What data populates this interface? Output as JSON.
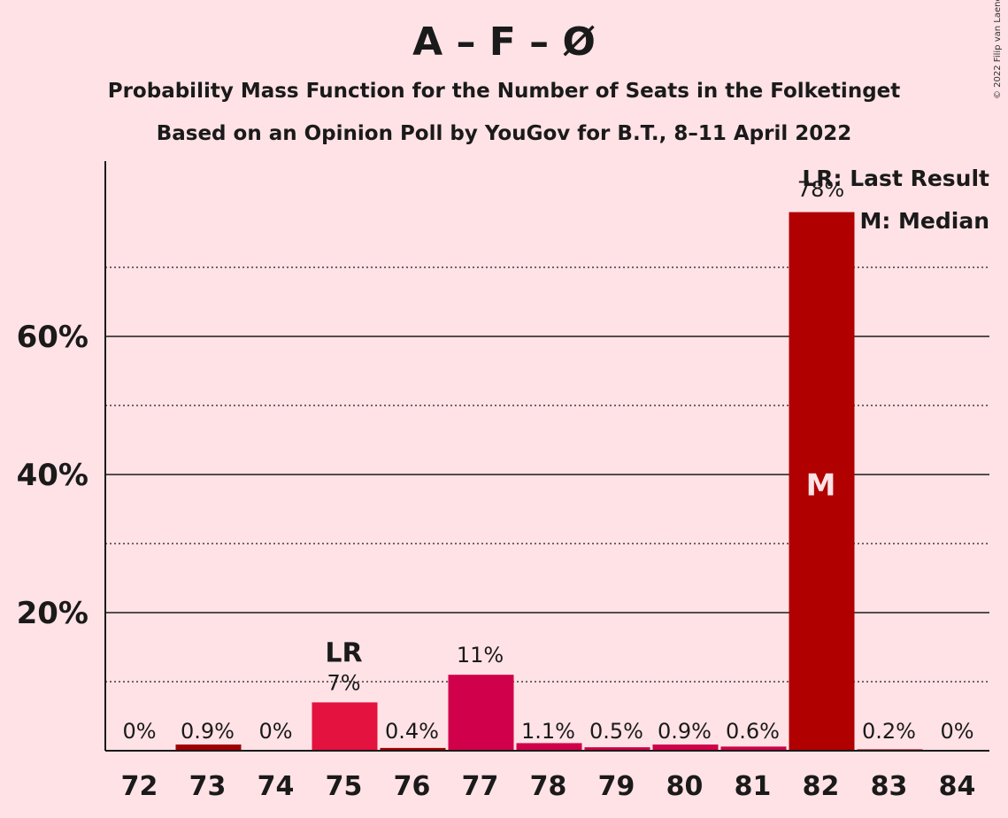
{
  "chart_data": {
    "type": "bar",
    "title": "A – F – Ø",
    "subtitle": "Probability Mass Function for the Number of Seats in the Folketinget",
    "subtitle2": "Based on an Opinion Poll by YouGov for B.T., 8–11 April 2022",
    "copyright": "© 2022 Filip van Laenen",
    "categories": [
      "72",
      "73",
      "74",
      "75",
      "76",
      "77",
      "78",
      "79",
      "80",
      "81",
      "82",
      "83",
      "84"
    ],
    "values": [
      0,
      0.9,
      0,
      7,
      0.4,
      11,
      1.1,
      0.5,
      0.9,
      0.6,
      78,
      0.2,
      0
    ],
    "value_labels": [
      "0%",
      "0.9%",
      "0%",
      "7%",
      "0.4%",
      "11%",
      "1.1%",
      "0.5%",
      "0.9%",
      "0.6%",
      "78%",
      "0.2%",
      "0%"
    ],
    "bar_colors": [
      "#A00000",
      "#A00000",
      "#A00000",
      "#E3123E",
      "#A00000",
      "#D0004A",
      "#D0004A",
      "#D0004A",
      "#D0004A",
      "#D0004A",
      "#B00000",
      "#A00000",
      "#A00000"
    ],
    "ylim": [
      0,
      85
    ],
    "y_ticks": [
      20,
      40,
      60
    ],
    "y_tick_labels": [
      "20%",
      "40%",
      "60%"
    ],
    "y_minor_gridlines": [
      10,
      30,
      50,
      70
    ],
    "last_result_category": "75",
    "last_result_marker": "LR",
    "median_category": "82",
    "median_marker": "M",
    "legend": [
      "LR: Last Result",
      "M: Median"
    ],
    "legend_position": "top-right",
    "grid": true
  }
}
